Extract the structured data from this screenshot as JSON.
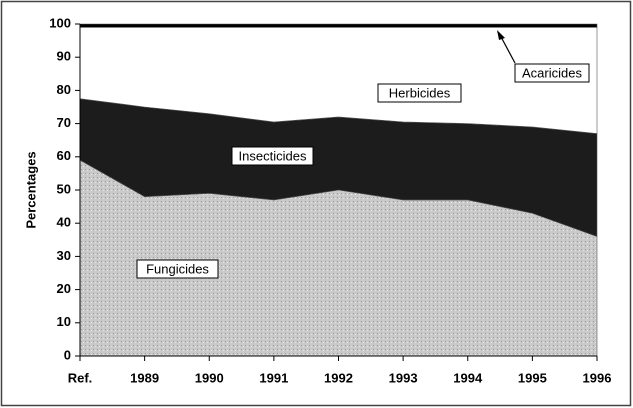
{
  "chart_data": {
    "type": "stacked_area",
    "y_label": "Percentages",
    "categories": [
      "Ref.",
      "1989",
      "1990",
      "1991",
      "1992",
      "1993",
      "1994",
      "1995",
      "1996"
    ],
    "series": [
      {
        "name": "Fungicides",
        "color": "#c9c9c9",
        "values": [
          59,
          48,
          49,
          47,
          50,
          47,
          47,
          43,
          36
        ]
      },
      {
        "name": "Insecticides",
        "color": "#1c1c1c",
        "values": [
          18.5,
          27,
          24,
          23.5,
          22,
          23.5,
          23,
          26,
          31
        ]
      },
      {
        "name": "Herbicides",
        "color": "#ffffff",
        "values": [
          21.5,
          24,
          26,
          28.5,
          27,
          28.5,
          29,
          30,
          32
        ]
      },
      {
        "name": "Acaricides",
        "color": "#000000",
        "values": [
          1,
          1,
          1,
          1,
          1,
          1,
          1,
          1,
          1
        ]
      }
    ],
    "ylim": [
      0,
      100
    ],
    "yticks": [
      0,
      10,
      20,
      30,
      40,
      50,
      60,
      70,
      80,
      90,
      100
    ],
    "grid": false
  }
}
